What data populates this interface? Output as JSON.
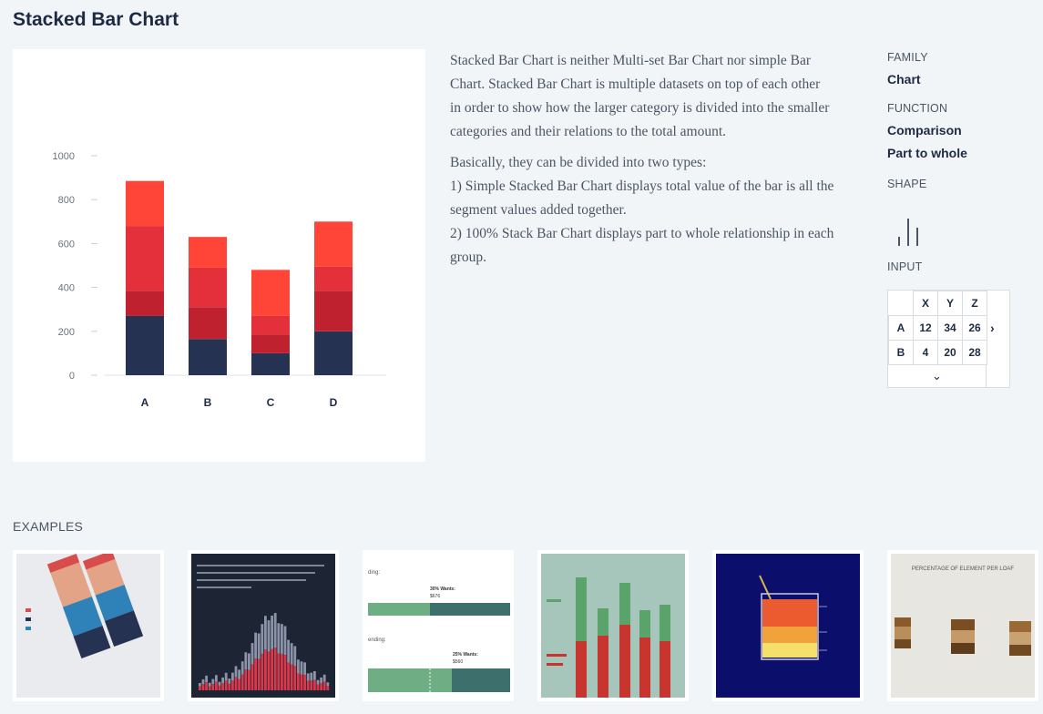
{
  "page": {
    "title": "Stacked Bar Chart"
  },
  "description": {
    "paragraph1_lines": [
      "Stacked Bar Chart is neither Multi-set Bar Chart nor simple Bar",
      "Chart. Stacked Bar Chart is multiple datasets on top of each other",
      "in order to show how the larger category is divided into the smaller",
      "categories and their relations to the total amount."
    ],
    "paragraph2_lines": [
      "Basically, they can be divided into two types:",
      "1) Simple Stacked Bar Chart displays total value of the bar is all the",
      "segment values added together.",
      "2) 100% Stack Bar Chart displays part to whole relationship in each",
      "group."
    ]
  },
  "meta": {
    "family_label": "FAMILY",
    "family_value": "Chart",
    "function_label": "FUNCTION",
    "function_values": [
      "Comparison",
      "Part to whole"
    ],
    "shape_label": "SHAPE",
    "input_label": "INPUT"
  },
  "input_table": {
    "headers": [
      "X",
      "Y",
      "Z"
    ],
    "rows": [
      {
        "label": "A",
        "values": [
          "12",
          "34",
          "26"
        ]
      },
      {
        "label": "B",
        "values": [
          "4",
          "20",
          "28"
        ]
      }
    ],
    "next_icon": "chevron-right-icon",
    "expand_icon": "chevron-down-icon"
  },
  "examples": {
    "label": "EXAMPLES",
    "thumb_texts": {
      "t3_a": "30% Wants:",
      "t3_b": "$676",
      "t3_c": "25% Wants:",
      "t3_d": "$560",
      "t3_e": "ding:",
      "t3_f": "ending:",
      "t6_title": "PERCENTAGE OF ELEMENT PER LOAF"
    }
  },
  "colors": {
    "navy": "#263252",
    "dark_red": "#c0212f",
    "red": "#e3303a",
    "light_red": "#ff4538",
    "axis": "#c9ced6"
  },
  "chart_data": {
    "type": "bar",
    "stacked": true,
    "categories": [
      "A",
      "B",
      "C",
      "D"
    ],
    "series": [
      {
        "values": [
          270,
          165,
          100,
          200
        ]
      },
      {
        "values": [
          115,
          145,
          85,
          185
        ]
      },
      {
        "values": [
          295,
          180,
          85,
          110
        ]
      },
      {
        "values": [
          205,
          140,
          210,
          205
        ]
      }
    ],
    "ylim": [
      0,
      1000
    ],
    "yticks": [
      0,
      200,
      400,
      600,
      800,
      1000
    ],
    "grid": false
  }
}
